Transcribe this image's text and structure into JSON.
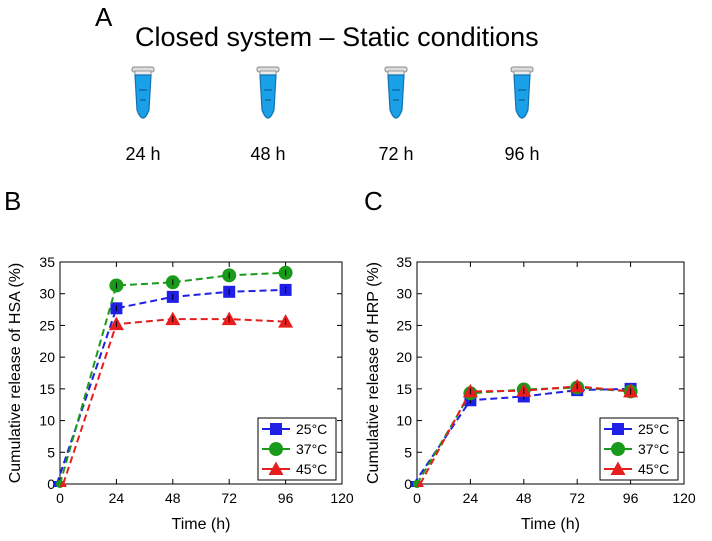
{
  "header": {
    "panel_label": "A",
    "title": "Closed system – Static conditions",
    "tubes": [
      {
        "label": "24 h",
        "icon": "microtube-icon",
        "color": "#1aa0e8"
      },
      {
        "label": "48 h",
        "icon": "microtube-icon",
        "color": "#1aa0e8"
      },
      {
        "label": "72 h",
        "icon": "microtube-icon",
        "color": "#1aa0e8"
      },
      {
        "label": "96 h",
        "icon": "microtube-icon",
        "color": "#1aa0e8"
      }
    ]
  },
  "chart_data": [
    {
      "panel_label": "B",
      "type": "line",
      "xlabel": "Time (h)",
      "ylabel": "Cumulative release of HSA (%)",
      "xlim": [
        0,
        120
      ],
      "ylim": [
        0,
        35
      ],
      "xticks": [
        "0",
        "24",
        "48",
        "72",
        "96",
        "120"
      ],
      "yticks": [
        "0",
        "5",
        "10",
        "15",
        "20",
        "25",
        "30",
        "35"
      ],
      "legend_position": "bottom-right",
      "x": [
        0,
        24,
        48,
        72,
        96
      ],
      "series": [
        {
          "name": "25°C",
          "color": "#1f1fe6",
          "marker": "square",
          "values": [
            0,
            27.7,
            29.5,
            30.3,
            30.6
          ]
        },
        {
          "name": "37°C",
          "color": "#1a9a1a",
          "marker": "circle",
          "values": [
            0,
            31.3,
            31.8,
            32.9,
            33.3
          ]
        },
        {
          "name": "45°C",
          "color": "#e61e1e",
          "marker": "triangle",
          "values": [
            0,
            25.2,
            26.0,
            26.0,
            25.6
          ]
        }
      ]
    },
    {
      "panel_label": "C",
      "type": "line",
      "xlabel": "Time (h)",
      "ylabel": "Cumulative release of HRP (%)",
      "xlim": [
        0,
        120
      ],
      "ylim": [
        0,
        35
      ],
      "xticks": [
        "0",
        "24",
        "48",
        "72",
        "96",
        "120"
      ],
      "yticks": [
        "0",
        "5",
        "10",
        "15",
        "20",
        "25",
        "30",
        "35"
      ],
      "legend_position": "bottom-right",
      "x": [
        0,
        24,
        48,
        72,
        96
      ],
      "series": [
        {
          "name": "25°C",
          "color": "#1f1fe6",
          "marker": "square",
          "values": [
            0,
            13.2,
            13.8,
            14.8,
            15.0
          ]
        },
        {
          "name": "37°C",
          "color": "#1a9a1a",
          "marker": "circle",
          "values": [
            0,
            14.3,
            14.9,
            15.2,
            14.6
          ]
        },
        {
          "name": "45°C",
          "color": "#e61e1e",
          "marker": "triangle",
          "values": [
            0,
            14.6,
            14.7,
            15.4,
            14.6
          ]
        }
      ]
    }
  ]
}
